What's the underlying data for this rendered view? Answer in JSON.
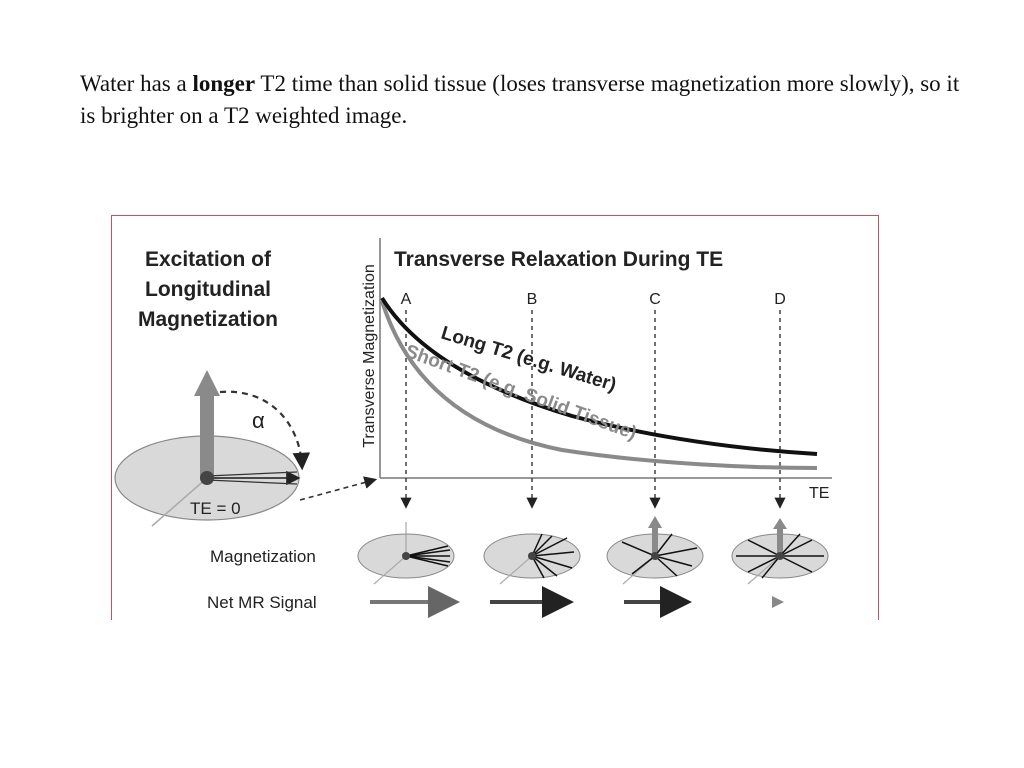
{
  "caption": {
    "part1": "Water has a ",
    "bold": "longer",
    "part2": " T2 time than solid tissue (loses transverse magnetization more slowly), so it is brighter on a T2 weighted image."
  },
  "figure": {
    "left_title": [
      "Excitation of",
      "Longitudinal",
      "Magnetization"
    ],
    "right_title": "Transverse Relaxation During TE",
    "alpha": "α",
    "te_zero": "TE = 0",
    "y_axis_label": "Transverse Magnetization",
    "x_axis_label": "TE",
    "timepoints": [
      "A",
      "B",
      "C",
      "D"
    ],
    "long_curve_label": "Long T2 (e.g. Water)",
    "short_curve_label": "Short T2 (e.g. Solid Tissue)",
    "row_magnetization": "Magnetization",
    "row_signal": "Net MR Signal",
    "colors": {
      "long_curve": "#111111",
      "short_curve": "#8a8a8a",
      "frame": "#b85a5a"
    }
  }
}
